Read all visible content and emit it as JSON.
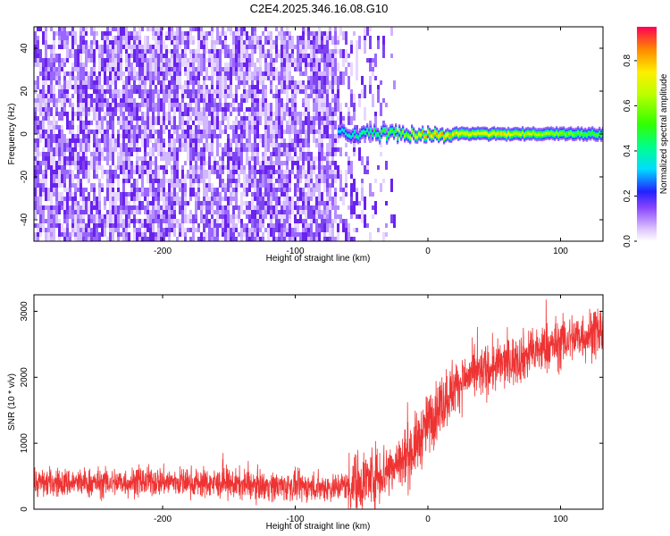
{
  "title": "C2E4.2025.346.16.08.G10",
  "colors": {
    "snr_line": "#ee3333",
    "noise_colors": [
      "#e8d8ff",
      "#d2b8ff",
      "#b48cff",
      "#9966ff",
      "#7d44f0",
      "#6a22ee"
    ],
    "colorbar_stops": [
      {
        "v": 0.0,
        "c": "#ffffff"
      },
      {
        "v": 0.05,
        "c": "#e0c8ff"
      },
      {
        "v": 0.15,
        "c": "#8844ff"
      },
      {
        "v": 0.22,
        "c": "#2222ff"
      },
      {
        "v": 0.32,
        "c": "#00ddff"
      },
      {
        "v": 0.42,
        "c": "#00ff88"
      },
      {
        "v": 0.52,
        "c": "#33ff00"
      },
      {
        "v": 0.65,
        "c": "#bbff00"
      },
      {
        "v": 0.75,
        "c": "#ffee00"
      },
      {
        "v": 0.85,
        "c": "#ff8800"
      },
      {
        "v": 1.0,
        "c": "#ff0055"
      }
    ]
  },
  "chart_data": [
    {
      "type": "heatmap",
      "xlabel": "Height of straight line (km)",
      "ylabel": "Frequency (Hz)",
      "xlim": [
        -297,
        132
      ],
      "ylim": [
        -50,
        50
      ],
      "xticks": [
        -200,
        -100,
        0,
        100
      ],
      "yticks": [
        -40,
        -20,
        0,
        20,
        40
      ],
      "colorbar": {
        "label": "Normalized spectral amplitude",
        "range": [
          0,
          0.95
        ],
        "ticks": [
          0.0,
          0.2,
          0.4,
          0.6,
          0.8
        ]
      },
      "noise_region": {
        "dense_until_x": -70,
        "sparse_until_x": -25,
        "amplitude_range": [
          0.05,
          0.18
        ]
      },
      "tone": {
        "start_x": -68,
        "center_frequency": 0,
        "half_width_hz": 3
      },
      "tone_peaks": [
        {
          "x": -63,
          "amplitude": 0.4
        },
        {
          "x": -55,
          "amplitude": 0.45
        },
        {
          "x": -45,
          "amplitude": 0.5
        },
        {
          "x": -35,
          "amplitude": 0.55
        },
        {
          "x": -20,
          "amplitude": 0.65
        },
        {
          "x": -10,
          "amplitude": 0.8
        },
        {
          "x": -3,
          "amplitude": 0.85
        },
        {
          "x": 5,
          "amplitude": 0.95
        },
        {
          "x": 12,
          "amplitude": 0.85
        },
        {
          "x": 30,
          "amplitude": 0.8
        },
        {
          "x": 60,
          "amplitude": 0.8
        },
        {
          "x": 100,
          "amplitude": 0.65
        },
        {
          "x": 130,
          "amplitude": 0.55
        }
      ]
    },
    {
      "type": "line",
      "xlabel": "Height of straight line (km)",
      "ylabel": "SNR (10 * v/v)",
      "xlim": [
        -297,
        132
      ],
      "ylim": [
        0,
        3250
      ],
      "xticks": [
        -200,
        -100,
        0,
        100
      ],
      "yticks": [
        0,
        1000,
        2000,
        3000
      ],
      "series": [
        {
          "name": "SNR",
          "x": [
            -297,
            -250,
            -200,
            -150,
            -100,
            -70,
            -50,
            -30,
            -15,
            -5,
            0,
            10,
            20,
            30,
            50,
            70,
            90,
            110,
            132
          ],
          "y": [
            400,
            400,
            420,
            380,
            340,
            330,
            420,
            600,
            800,
            1100,
            1300,
            1600,
            1850,
            2000,
            2150,
            2300,
            2450,
            2600,
            2700
          ]
        }
      ]
    }
  ]
}
